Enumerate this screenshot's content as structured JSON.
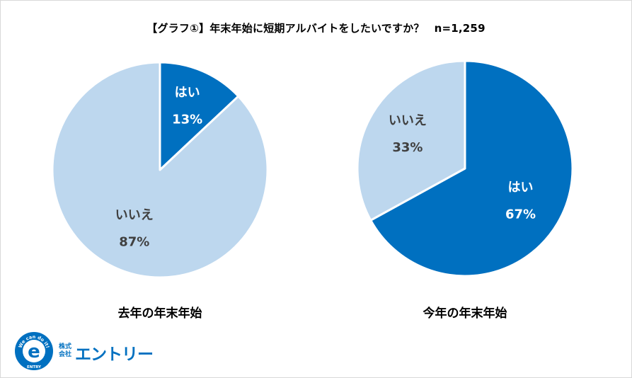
{
  "title": "【グラフ①】年末年始に短期アルバイトをしたいですか？",
  "sample_size": "n=1,259",
  "colors": {
    "yes": "#0070c0",
    "no": "#bdd7ee",
    "yes_text": "#ffffff",
    "no_text": "#404040"
  },
  "chart_data": [
    {
      "type": "pie",
      "title": "去年の年末年始",
      "slices": [
        {
          "label": "はい",
          "value": 13,
          "value_label": "13%"
        },
        {
          "label": "いいえ",
          "value": 87,
          "value_label": "87%"
        }
      ]
    },
    {
      "type": "pie",
      "title": "今年の年末年始",
      "slices": [
        {
          "label": "はい",
          "value": 67,
          "value_label": "67%"
        },
        {
          "label": "いいえ",
          "value": 33,
          "value_label": "33%"
        }
      ]
    }
  ],
  "logo": {
    "badge_letter": "e",
    "ring_text": "We can do it!",
    "badge_bottom": "ENTRY",
    "company_prefix": "株式会社",
    "company_name": "エントリー"
  }
}
